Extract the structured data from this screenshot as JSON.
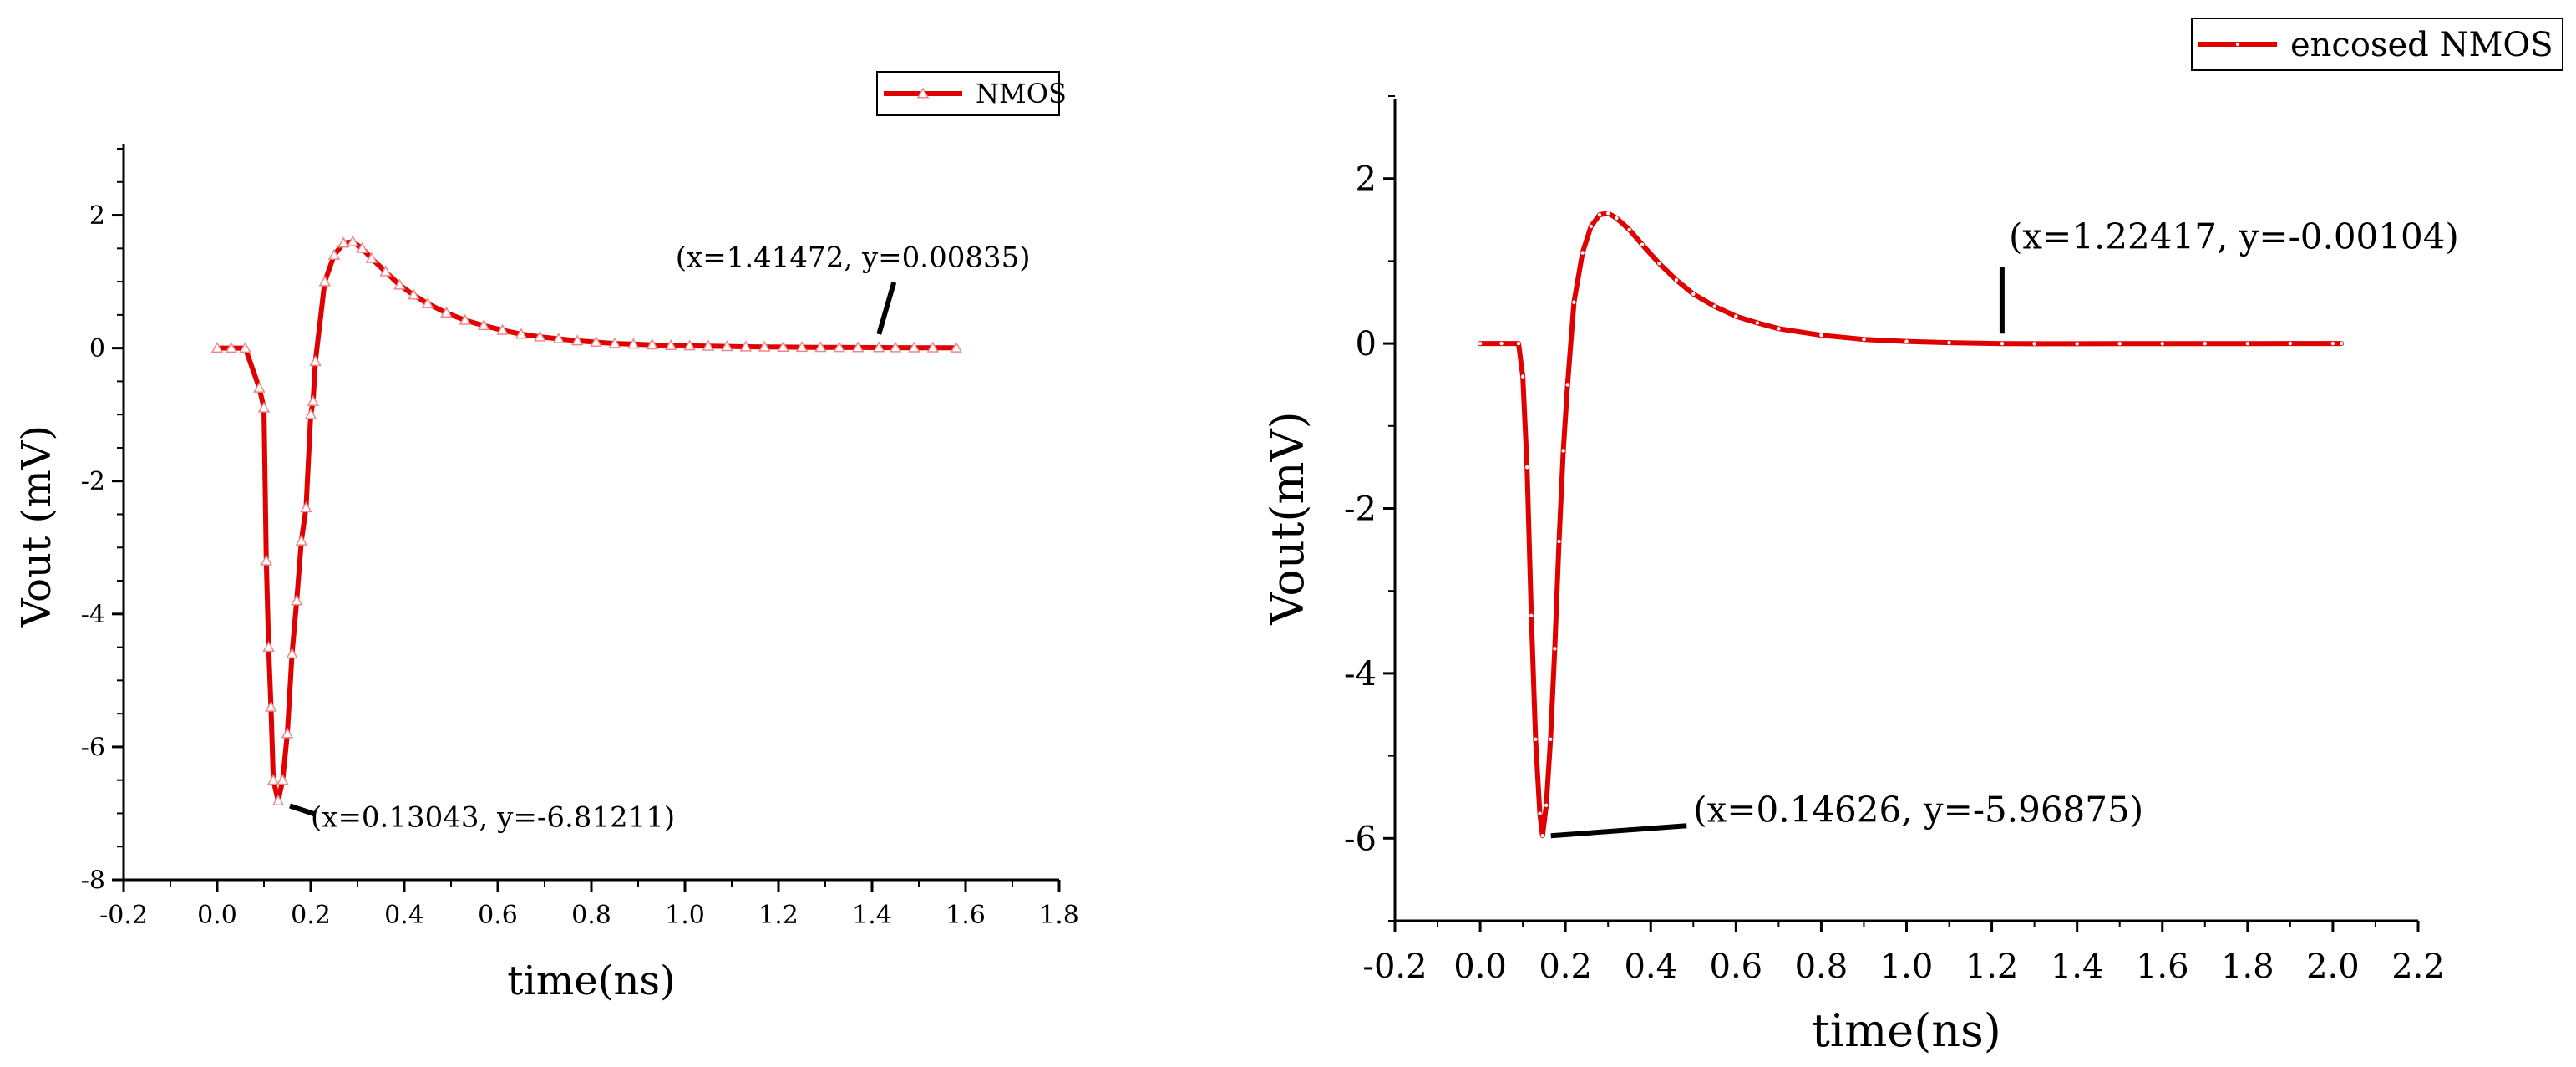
{
  "chart_data": [
    {
      "type": "line",
      "title": "",
      "xlabel": "time(ns)",
      "ylabel": "Vout (mV)",
      "xlim": [
        -0.2,
        1.8
      ],
      "ylim": [
        -8,
        3
      ],
      "xticks": [
        -0.2,
        0.0,
        0.2,
        0.4,
        0.6,
        0.8,
        1.0,
        1.2,
        1.4,
        1.6,
        1.8
      ],
      "xtick_labels": [
        "-0.2",
        "0.0",
        "0.2",
        "0.4",
        "0.6",
        "0.8",
        "1.0",
        "1.2",
        "1.4",
        "1.6",
        "1.8"
      ],
      "yticks": [
        -8,
        -6,
        -4,
        -2,
        0,
        2
      ],
      "ytick_labels": [
        "-8",
        "-6",
        "-4",
        "-2",
        "0",
        "2"
      ],
      "legend_position": "top-right",
      "series": [
        {
          "name": "NMOS",
          "color": "#e00000",
          "marker": "triangle",
          "x": [
            0.0,
            0.03,
            0.06,
            0.09,
            0.1,
            0.105,
            0.11,
            0.115,
            0.12,
            0.13043,
            0.14,
            0.15,
            0.16,
            0.17,
            0.18,
            0.19,
            0.2,
            0.205,
            0.21,
            0.23,
            0.25,
            0.27,
            0.29,
            0.31,
            0.33,
            0.36,
            0.39,
            0.42,
            0.45,
            0.49,
            0.53,
            0.57,
            0.61,
            0.65,
            0.69,
            0.73,
            0.77,
            0.81,
            0.85,
            0.89,
            0.93,
            0.97,
            1.01,
            1.05,
            1.09,
            1.13,
            1.17,
            1.21,
            1.25,
            1.29,
            1.33,
            1.37,
            1.41472,
            1.45,
            1.49,
            1.53,
            1.58
          ],
          "y": [
            0.0,
            0.0,
            0.0,
            -0.6,
            -0.9,
            -3.2,
            -4.5,
            -5.4,
            -6.5,
            -6.81211,
            -6.5,
            -5.8,
            -4.6,
            -3.8,
            -2.9,
            -2.4,
            -1.0,
            -0.8,
            -0.2,
            1.0,
            1.4,
            1.58,
            1.6,
            1.5,
            1.35,
            1.15,
            0.95,
            0.8,
            0.67,
            0.53,
            0.42,
            0.34,
            0.27,
            0.21,
            0.17,
            0.14,
            0.11,
            0.09,
            0.07,
            0.06,
            0.05,
            0.04,
            0.035,
            0.03,
            0.025,
            0.02,
            0.018,
            0.015,
            0.013,
            0.012,
            0.01,
            0.009,
            0.00835,
            0.007,
            0.006,
            0.005,
            0.004
          ]
        }
      ],
      "annotations": [
        {
          "text": "(x=1.41472,  y=0.00835)",
          "x": 1.41472,
          "y": 0.00835,
          "label_x": 0.98,
          "label_y": 1.22
        },
        {
          "text": "(x=0.13043,  y=-6.81211)",
          "x": 0.13043,
          "y": -6.81211,
          "label_x": 0.2,
          "label_y": -7.2
        }
      ]
    },
    {
      "type": "line",
      "title": "",
      "xlabel": "time(ns)",
      "ylabel": "Vout(mV)",
      "xlim": [
        -0.2,
        2.2
      ],
      "ylim": [
        -7,
        3
      ],
      "xticks": [
        -0.2,
        0.0,
        0.2,
        0.4,
        0.6,
        0.8,
        1.0,
        1.2,
        1.4,
        1.6,
        1.8,
        2.0,
        2.2
      ],
      "xtick_labels": [
        "-0.2",
        "0.0",
        "0.2",
        "0.4",
        "0.6",
        "0.8",
        "1.0",
        "1.2",
        "1.4",
        "1.6",
        "1.8",
        "2.0",
        "2.2"
      ],
      "yticks": [
        -6,
        -4,
        -2,
        0,
        2
      ],
      "ytick_labels": [
        "-6",
        "-4",
        "-2",
        "0",
        "2"
      ],
      "legend_position": "top-right",
      "series": [
        {
          "name": "encosed NMOS",
          "color": "#e00000",
          "marker": "dot",
          "x": [
            0.0,
            0.05,
            0.09,
            0.1,
            0.11,
            0.12,
            0.13,
            0.14,
            0.14626,
            0.155,
            0.165,
            0.175,
            0.185,
            0.195,
            0.205,
            0.22,
            0.24,
            0.26,
            0.28,
            0.3,
            0.32,
            0.35,
            0.38,
            0.42,
            0.46,
            0.5,
            0.55,
            0.6,
            0.65,
            0.7,
            0.8,
            0.9,
            1.0,
            1.1,
            1.22417,
            1.3,
            1.4,
            1.5,
            1.6,
            1.7,
            1.8,
            1.9,
            2.0,
            2.02
          ],
          "y": [
            0.0,
            0.0,
            0.0,
            -0.4,
            -1.5,
            -3.3,
            -4.8,
            -5.7,
            -5.96875,
            -5.6,
            -4.8,
            -3.7,
            -2.4,
            -1.3,
            -0.5,
            0.5,
            1.1,
            1.42,
            1.56,
            1.58,
            1.52,
            1.38,
            1.2,
            0.97,
            0.77,
            0.6,
            0.45,
            0.33,
            0.25,
            0.18,
            0.1,
            0.05,
            0.025,
            0.01,
            -0.00104,
            -0.003,
            -0.003,
            -0.002,
            -0.002,
            -0.001,
            -0.001,
            0.0,
            0.0,
            0.0
          ]
        }
      ],
      "annotations": [
        {
          "text": "(x=1.22417,  y=-0.00104)",
          "x": 1.22417,
          "y": -0.00104,
          "label_x": 1.24,
          "label_y": 1.15
        },
        {
          "text": "(x=0.14626,  y=-5.96875)",
          "x": 0.14626,
          "y": -5.96875,
          "label_x": 0.5,
          "label_y": -5.8
        }
      ]
    }
  ]
}
